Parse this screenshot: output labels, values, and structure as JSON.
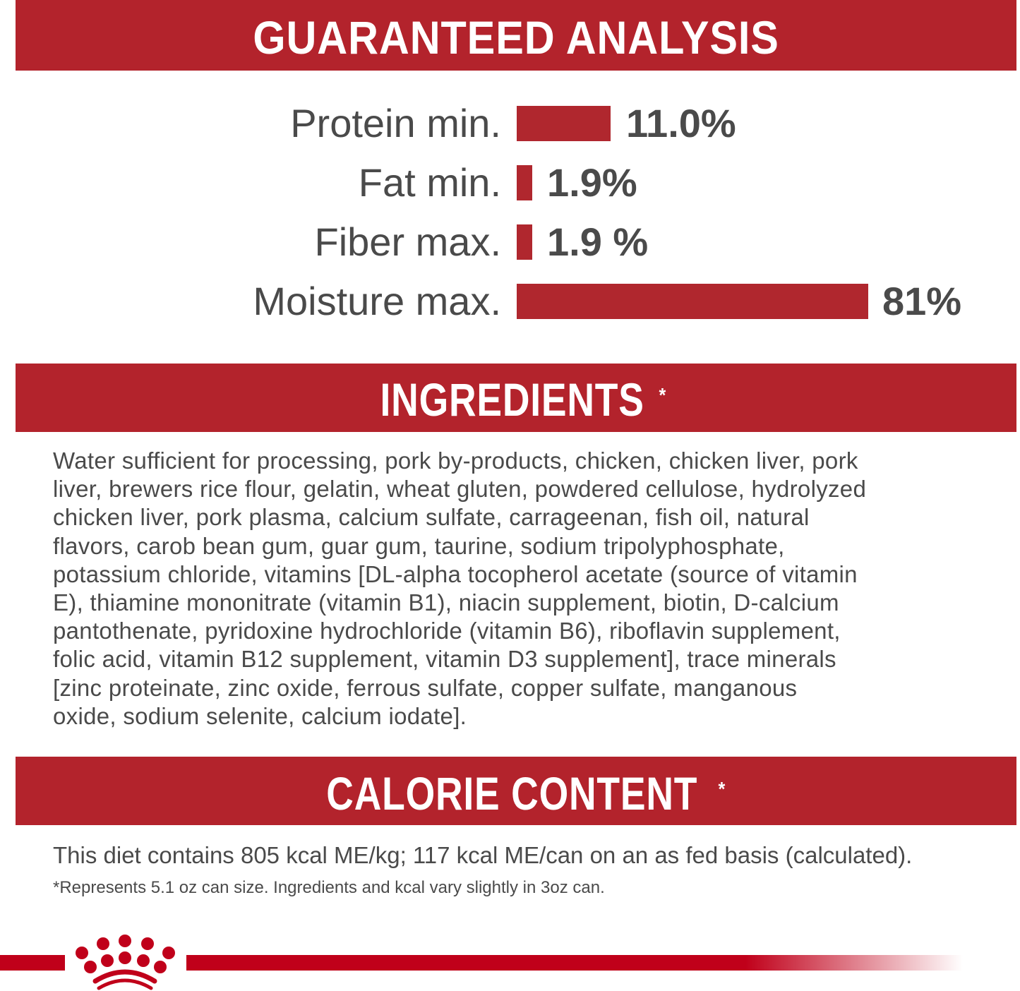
{
  "guaranteed_analysis": {
    "title": "GUARANTEED ANALYSIS",
    "rows": [
      {
        "label": "Protein min.",
        "value": "11.0%",
        "percent": 11.0
      },
      {
        "label": "Fat min.",
        "value": "1.9%",
        "percent": 1.9
      },
      {
        "label": "Fiber max.",
        "value": "1.9 %",
        "percent": 1.9
      },
      {
        "label": "Moisture max.",
        "value": "81%",
        "percent": 81
      }
    ],
    "bar_color": "#b0272e"
  },
  "ingredients": {
    "title": "INGREDIENTS",
    "asterisk": "*",
    "lines": [
      "Water sufficient for processing, pork by-products, chicken, chicken liver, pork",
      "liver, brewers rice flour, gelatin, wheat gluten, powdered cellulose, hydrolyzed",
      "chicken liver, pork plasma, calcium sulfate, carrageenan, fish oil, natural",
      "flavors, carob bean gum, guar gum, taurine, sodium tripolyphosphate,",
      "potassium chloride, vitamins [DL-alpha tocopherol acetate (source of vitamin",
      "E), thiamine mononitrate (vitamin B1), niacin supplement, biotin, D-calcium",
      "pantothenate, pyridoxine hydrochloride (vitamin B6), riboflavin supplement,",
      "folic acid, vitamin B12 supplement, vitamin D3 supplement], trace minerals",
      "[zinc proteinate, zinc oxide, ferrous sulfate, copper sulfate, manganous",
      "oxide, sodium selenite, calcium iodate]."
    ]
  },
  "calorie_content": {
    "title": "CALORIE CONTENT",
    "asterisk": "*",
    "text": "This diet contains 805 kcal ME/kg; 117 kcal ME/can on an as fed basis (calculated).",
    "footnote": "*Represents 5.1 oz can size. Ingredients and kcal vary slightly in 3oz can."
  },
  "brand": {
    "logo": "royal-canin-crown-logo",
    "color": "#c0001a"
  }
}
